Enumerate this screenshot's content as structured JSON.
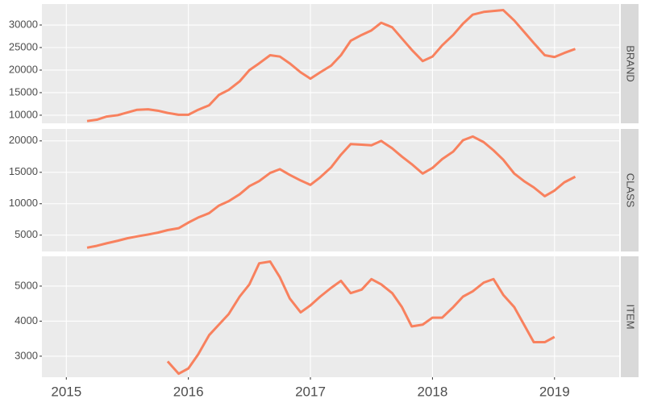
{
  "chart_data": [
    {
      "type": "line",
      "title": "BRAND",
      "color": "#f8815e",
      "grid": true,
      "x": [
        2015.17,
        2015.25,
        2015.33,
        2015.42,
        2015.5,
        2015.58,
        2015.67,
        2015.75,
        2015.83,
        2015.92,
        2016.0,
        2016.08,
        2016.17,
        2016.25,
        2016.33,
        2016.42,
        2016.5,
        2016.58,
        2016.67,
        2016.75,
        2016.83,
        2016.92,
        2017.0,
        2017.08,
        2017.17,
        2017.25,
        2017.33,
        2017.42,
        2017.5,
        2017.58,
        2017.67,
        2017.75,
        2017.83,
        2017.92,
        2018.0,
        2018.08,
        2018.17,
        2018.25,
        2018.33,
        2018.42,
        2018.5,
        2018.58,
        2018.67,
        2018.75,
        2018.83,
        2018.92,
        2019.0,
        2019.08,
        2019.17
      ],
      "values": [
        8700,
        9000,
        9700,
        10000,
        10600,
        11200,
        11300,
        11000,
        10500,
        10100,
        10100,
        11200,
        12200,
        14500,
        15600,
        17500,
        20000,
        21500,
        23300,
        23000,
        21500,
        19500,
        18100,
        19500,
        21000,
        23300,
        26500,
        27800,
        28800,
        30500,
        29500,
        27000,
        24500,
        22000,
        23000,
        25500,
        27800,
        30300,
        32300,
        32900,
        33100,
        33300,
        31000,
        28500,
        26000,
        23300,
        22900,
        23800,
        24700
      ],
      "xlim": [
        2014.8,
        2019.53
      ],
      "xticks": [
        2015,
        2016,
        2017,
        2018,
        2019
      ],
      "ylim": [
        8200,
        34650
      ],
      "yticks": [
        10000,
        15000,
        20000,
        25000,
        30000
      ]
    },
    {
      "type": "line",
      "title": "CLASS",
      "color": "#f8815e",
      "grid": true,
      "x": [
        2015.17,
        2015.25,
        2015.33,
        2015.42,
        2015.5,
        2015.58,
        2015.67,
        2015.75,
        2015.83,
        2015.92,
        2016.0,
        2016.08,
        2016.17,
        2016.25,
        2016.33,
        2016.42,
        2016.5,
        2016.58,
        2016.67,
        2016.75,
        2016.83,
        2016.92,
        2017.0,
        2017.08,
        2017.17,
        2017.25,
        2017.33,
        2017.42,
        2017.5,
        2017.58,
        2017.67,
        2017.75,
        2017.83,
        2017.92,
        2018.0,
        2018.08,
        2018.17,
        2018.25,
        2018.33,
        2018.42,
        2018.5,
        2018.58,
        2018.67,
        2018.75,
        2018.83,
        2018.92,
        2019.0,
        2019.08,
        2019.17
      ],
      "values": [
        3000,
        3300,
        3700,
        4100,
        4500,
        4800,
        5100,
        5400,
        5800,
        6100,
        7000,
        7800,
        8500,
        9700,
        10400,
        11500,
        12800,
        13600,
        14900,
        15500,
        14600,
        13700,
        13000,
        14200,
        15800,
        17800,
        19500,
        19400,
        19300,
        20000,
        18800,
        17500,
        16300,
        14800,
        15700,
        17100,
        18300,
        20100,
        20700,
        19800,
        18500,
        17000,
        14800,
        13600,
        12600,
        11200,
        12100,
        13400,
        14300
      ],
      "xlim": [
        2014.8,
        2019.53
      ],
      "xticks": [
        2015,
        2016,
        2017,
        2018,
        2019
      ],
      "ylim": [
        2400,
        21900
      ],
      "yticks": [
        5000,
        10000,
        15000,
        20000
      ]
    },
    {
      "type": "line",
      "title": "ITEM",
      "color": "#f8815e",
      "grid": true,
      "x": [
        2015.83,
        2015.92,
        2016.0,
        2016.08,
        2016.17,
        2016.25,
        2016.33,
        2016.42,
        2016.5,
        2016.58,
        2016.67,
        2016.75,
        2016.83,
        2016.92,
        2017.0,
        2017.08,
        2017.17,
        2017.25,
        2017.33,
        2017.42,
        2017.5,
        2017.58,
        2017.67,
        2017.75,
        2017.83,
        2017.92,
        2018.0,
        2018.08,
        2018.17,
        2018.25,
        2018.33,
        2018.42,
        2018.5,
        2018.58,
        2018.67,
        2018.75,
        2018.83,
        2018.92,
        2019.0
      ],
      "values": [
        2850,
        2500,
        2650,
        3050,
        3600,
        3900,
        4200,
        4700,
        5050,
        5650,
        5700,
        5250,
        4650,
        4250,
        4450,
        4700,
        4950,
        5150,
        4800,
        4900,
        5200,
        5050,
        4800,
        4400,
        3850,
        3900,
        4100,
        4100,
        4400,
        4700,
        4850,
        5100,
        5200,
        4750,
        4400,
        3900,
        3400,
        3400,
        3550
      ],
      "xlim": [
        2014.8,
        2019.53
      ],
      "xticks": [
        2015,
        2016,
        2017,
        2018,
        2019
      ],
      "ylim": [
        2400,
        5850
      ],
      "yticks": [
        3000,
        4000,
        5000
      ]
    }
  ]
}
